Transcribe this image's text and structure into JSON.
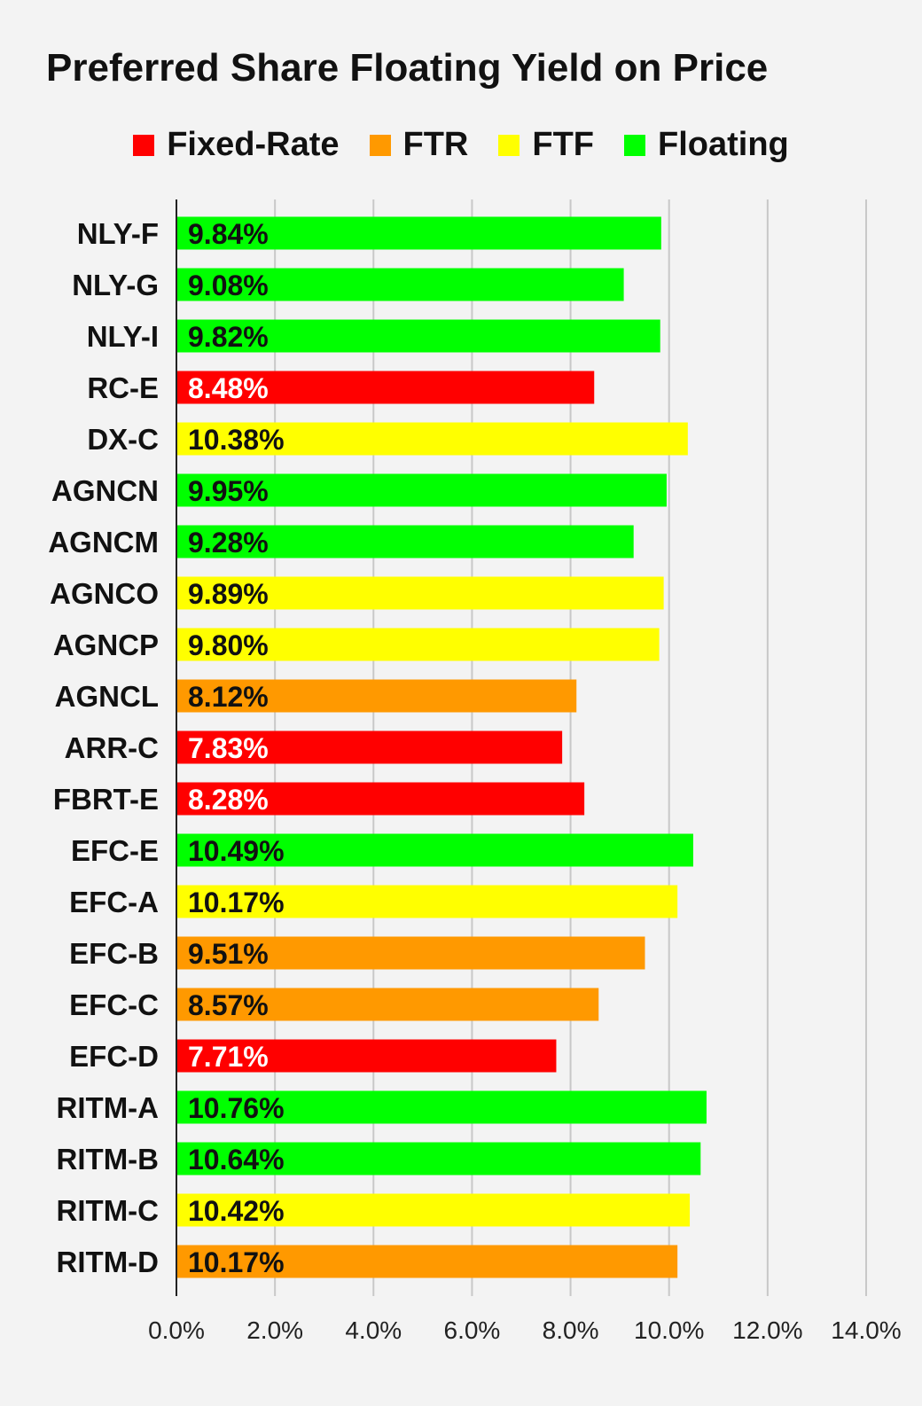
{
  "chart_data": {
    "type": "bar",
    "orientation": "horizontal",
    "title": "Preferred Share Floating Yield on Price",
    "xlabel": "",
    "ylabel": "",
    "xlim": [
      0,
      14
    ],
    "x_ticks": [
      "0.0%",
      "2.0%",
      "4.0%",
      "6.0%",
      "8.0%",
      "10.0%",
      "12.0%",
      "14.0%"
    ],
    "grid": "vertical",
    "legend_position": "top",
    "legend": [
      {
        "name": "Fixed-Rate",
        "color": "#ff0000"
      },
      {
        "name": "FTR",
        "color": "#ff9900"
      },
      {
        "name": "FTF",
        "color": "#ffff00"
      },
      {
        "name": "Floating",
        "color": "#00ff00"
      }
    ],
    "categories": [
      "NLY-F",
      "NLY-G",
      "NLY-I",
      "RC-E",
      "DX-C",
      "AGNCN",
      "AGNCM",
      "AGNCO",
      "AGNCP",
      "AGNCL",
      "ARR-C",
      "FBRT-E",
      "EFC-E",
      "EFC-A",
      "EFC-B",
      "EFC-C",
      "EFC-D",
      "RITM-A",
      "RITM-B",
      "RITM-C",
      "RITM-D"
    ],
    "values": [
      9.84,
      9.08,
      9.82,
      8.48,
      10.38,
      9.95,
      9.28,
      9.89,
      9.8,
      8.12,
      7.83,
      8.28,
      10.49,
      10.17,
      9.51,
      8.57,
      7.71,
      10.76,
      10.64,
      10.42,
      10.17
    ],
    "value_labels": [
      "9.84%",
      "9.08%",
      "9.82%",
      "8.48%",
      "10.38%",
      "9.95%",
      "9.28%",
      "9.89%",
      "9.80%",
      "8.12%",
      "7.83%",
      "8.28%",
      "10.49%",
      "10.17%",
      "9.51%",
      "8.57%",
      "7.71%",
      "10.76%",
      "10.64%",
      "10.42%",
      "10.17%"
    ],
    "series_type": [
      "Floating",
      "Floating",
      "Floating",
      "Fixed-Rate",
      "FTF",
      "Floating",
      "Floating",
      "FTF",
      "FTF",
      "FTR",
      "Fixed-Rate",
      "Fixed-Rate",
      "Floating",
      "FTF",
      "FTR",
      "FTR",
      "Fixed-Rate",
      "Floating",
      "Floating",
      "FTF",
      "FTR"
    ]
  },
  "colors": {
    "background": "#f3f3f3",
    "grid": "#c8c8c8",
    "axis": "#222222",
    "label_on_red": "#ffffff",
    "label_default": "#111111"
  }
}
